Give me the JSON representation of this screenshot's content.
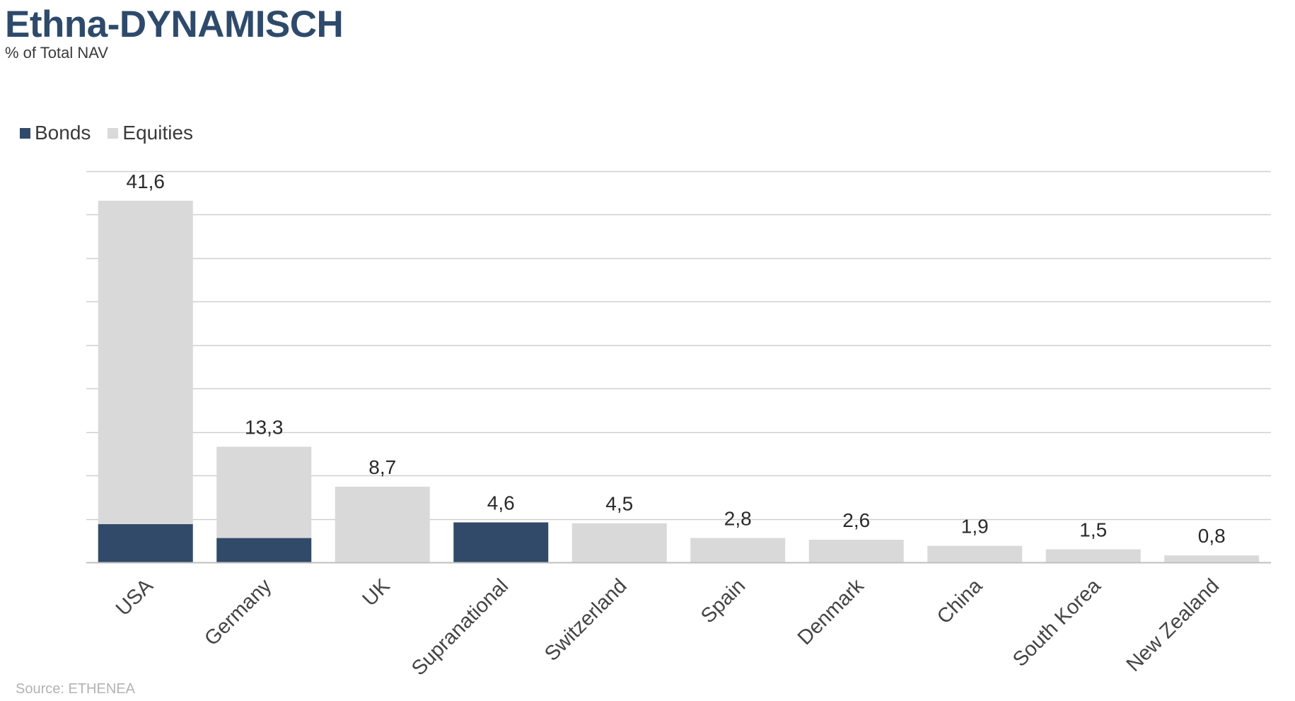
{
  "header": {
    "title": "Ethna-DYNAMISCH",
    "subtitle": "% of Total NAV"
  },
  "legend": {
    "bonds_label": "Bonds",
    "equities_label": "Equities"
  },
  "footer": {
    "source": "Source: ETHENEA"
  },
  "colors": {
    "bonds": "#314a69",
    "equities": "#d9d9d9",
    "grid": "#d0d0d0",
    "title": "#2e4a6b"
  },
  "chart_data": {
    "type": "bar",
    "stacked": true,
    "categories": [
      "USA",
      "Germany",
      "UK",
      "Supranational",
      "Switzerland",
      "Spain",
      "Denmark",
      "China",
      "South Korea",
      "New Zealand"
    ],
    "series": [
      {
        "name": "Bonds",
        "values": [
          4.4,
          2.8,
          0,
          4.6,
          0,
          0,
          0,
          0,
          0,
          0
        ]
      },
      {
        "name": "Equities",
        "values": [
          37.2,
          10.5,
          8.7,
          0,
          4.5,
          2.8,
          2.6,
          1.9,
          1.5,
          0.8
        ]
      }
    ],
    "totals": [
      "41,6",
      "13,3",
      "8,7",
      "4,6",
      "4,5",
      "2,8",
      "2,6",
      "1,9",
      "1,5",
      "0,8"
    ],
    "ylim": [
      0,
      45
    ],
    "grid": true,
    "legend_position": "top-left"
  }
}
